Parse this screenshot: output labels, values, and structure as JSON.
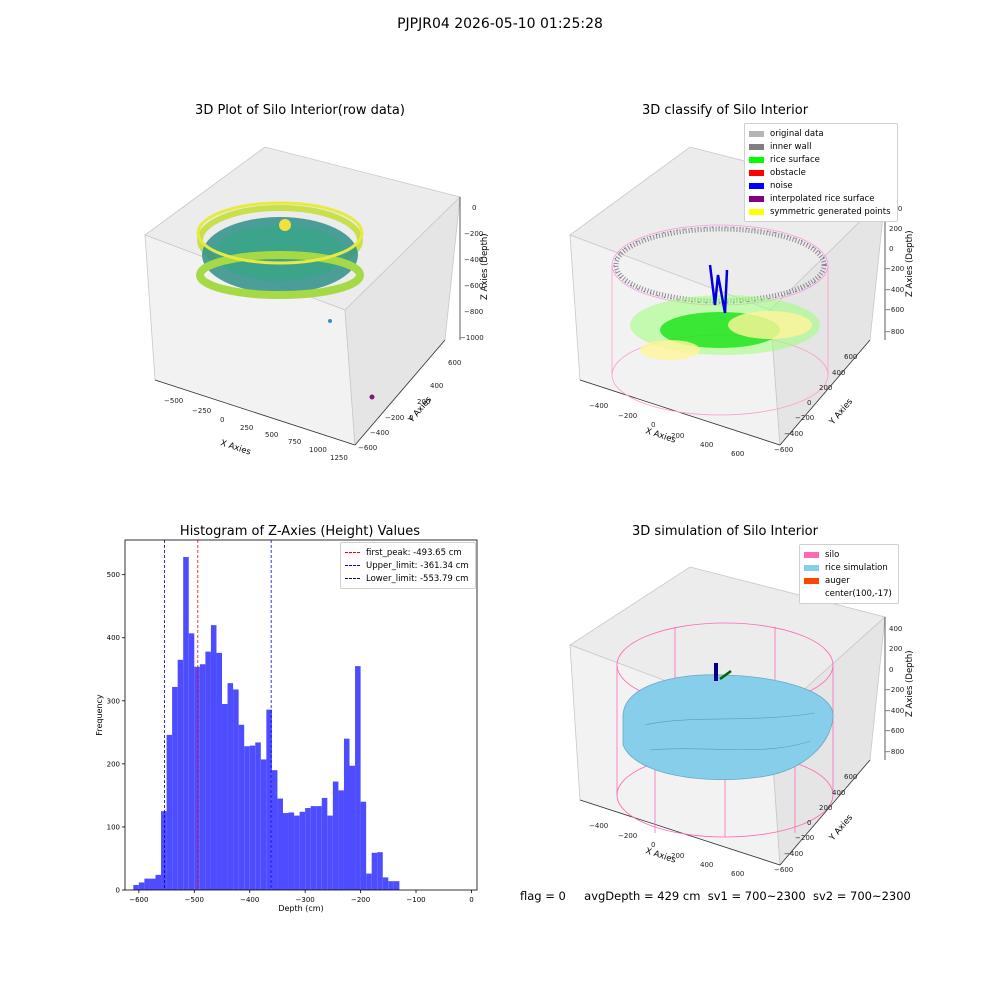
{
  "suptitle": "PJPJR04 2026-05-10 01:25:28",
  "panels": {
    "raw": {
      "title": "3D Plot of Silo Interior(row data)",
      "xlabel": "X Axies",
      "ylabel": "Y Axies",
      "zlabel": "Z Axies (Depth)",
      "xticks": [
        "−500",
        "−250",
        "0",
        "250",
        "500",
        "750",
        "1000",
        "1250"
      ],
      "yticks": [
        "600",
        "400",
        "200",
        "0",
        "−200",
        "−400",
        "−600"
      ],
      "zticks": [
        "0",
        "−200",
        "−400",
        "−600",
        "−800",
        "−1000"
      ]
    },
    "classify": {
      "title": "3D classify of Silo Interior",
      "xlabel": "X Axies",
      "ylabel": "Y Axies",
      "zlabel": "Z Axies (Depth)",
      "xticks": [
        "−400",
        "−200",
        "0",
        "200",
        "400",
        "600"
      ],
      "yticks": [
        "600",
        "400",
        "200",
        "0",
        "−200",
        "−400",
        "−600"
      ],
      "zticks": [
        "400",
        "200",
        "0",
        "−200",
        "−400",
        "−600",
        "−800"
      ],
      "legend": [
        {
          "label": "original data",
          "color": "#b4b4b4"
        },
        {
          "label": "inner wall",
          "color": "#808080"
        },
        {
          "label": "rice surface",
          "color": "#00ff00"
        },
        {
          "label": "obstacle",
          "color": "#ff0000"
        },
        {
          "label": "noise",
          "color": "#0000ff"
        },
        {
          "label": "interpolated rice surface",
          "color": "#800080"
        },
        {
          "label": "symmetric generated points",
          "color": "#ffff00"
        }
      ]
    },
    "sim": {
      "title": "3D simulation of Silo Interior",
      "xlabel": "X Axies",
      "ylabel": "Y Axies",
      "zlabel": "Z Axies (Depth)",
      "xticks": [
        "−400",
        "−200",
        "0",
        "200",
        "400",
        "600"
      ],
      "yticks": [
        "600",
        "400",
        "200",
        "0",
        "−200",
        "−400",
        "−600"
      ],
      "zticks": [
        "400",
        "200",
        "0",
        "−200",
        "−400",
        "−600",
        "−800"
      ],
      "legend": [
        {
          "label": "silo",
          "color": "#ff69b4"
        },
        {
          "label": "rice simulation",
          "color": "#87ceeb"
        },
        {
          "label": "auger",
          "color": "#ff4500"
        },
        {
          "label": "center(100,-17)",
          "color": ""
        }
      ]
    }
  },
  "chart_data": [
    {
      "type": "bar",
      "title": "Histogram of Z-Axies (Height) Values",
      "xlabel": "Depth (cm)",
      "ylabel": "Frequency",
      "xlim": [
        -625,
        10
      ],
      "ylim": [
        0,
        555
      ],
      "bar_color": "#4d4dff",
      "bin_width": 10,
      "xticks": [
        -600,
        -500,
        -400,
        -300,
        -200,
        -100,
        0
      ],
      "xtick_labels": [
        "−600",
        "−500",
        "−400",
        "−300",
        "−200",
        "−100",
        "0"
      ],
      "yticks": [
        0,
        100,
        200,
        300,
        400,
        500
      ],
      "x_bin_starts": [
        -600,
        -590,
        -580,
        -570,
        -560,
        -550,
        -540,
        -530,
        -520,
        -510,
        -500,
        -490,
        -480,
        -470,
        -460,
        -450,
        -440,
        -430,
        -420,
        -410,
        -400,
        -390,
        -380,
        -370,
        -360,
        -350,
        -340,
        -330,
        -320,
        -310,
        -300,
        -290,
        -280,
        -270,
        -260,
        -250,
        -240,
        -230,
        -220,
        -210,
        -200,
        -190,
        -180,
        -170,
        -160,
        -150,
        -140,
        -130,
        -120,
        -110,
        -100,
        -90,
        -80,
        -70,
        -60,
        -50,
        -40,
        -30,
        -20,
        -10
      ],
      "values": [
        8,
        12,
        18,
        18,
        24,
        125,
        246,
        322,
        365,
        528,
        407,
        354,
        358,
        378,
        420,
        376,
        295,
        328,
        318,
        262,
        228,
        229,
        234,
        207,
        286,
        190,
        145,
        122,
        123,
        118,
        124,
        130,
        133,
        133,
        146,
        118,
        172,
        158,
        240,
        197,
        355,
        140,
        26,
        59,
        60,
        20,
        14,
        14
      ],
      "values_start": -610,
      "lines": [
        {
          "label": "first_peak: -493.65 cm",
          "value": -493.65,
          "color": "#ff0000"
        },
        {
          "label": "Upper_limit: -361.34 cm",
          "value": -361.34,
          "color": "#0000ff"
        },
        {
          "label": "Lower_limit: -553.79 cm",
          "value": -553.79,
          "color": "#00008b"
        }
      ],
      "legend_position": "top-right"
    }
  ],
  "status": {
    "flag": "flag = 0",
    "avg": "avgDepth = 429 cm",
    "sv1": "sv1 = 700~2300",
    "sv2": "sv2 = 700~2300"
  }
}
